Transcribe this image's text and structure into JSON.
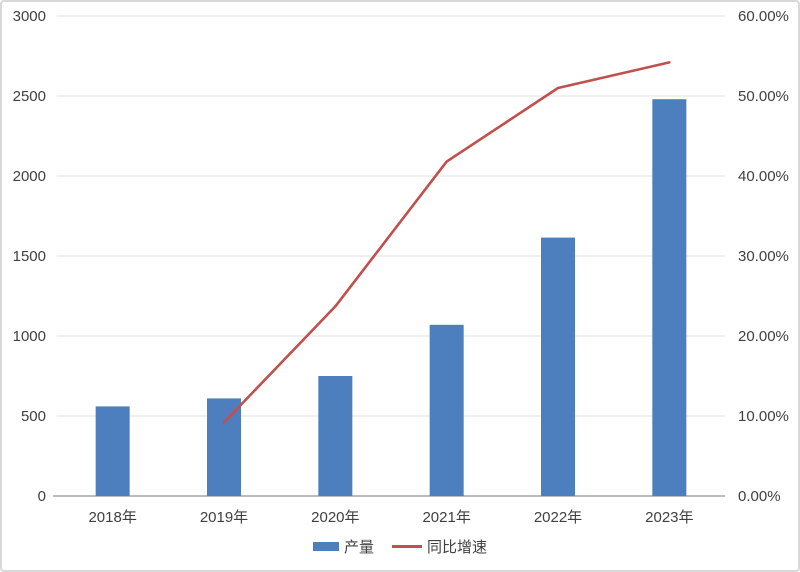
{
  "chart_data": {
    "type": "bar",
    "subtype": "bar-line-combo",
    "title": "",
    "categories": [
      "2018年",
      "2019年",
      "2020年",
      "2021年",
      "2022年",
      "2023年"
    ],
    "series": [
      {
        "name": "产量",
        "render": "bar",
        "axis": "left",
        "color": "#4d7ebd",
        "values": [
          560,
          610,
          750,
          1070,
          1615,
          2480
        ]
      },
      {
        "name": "同比增速",
        "render": "line",
        "axis": "right",
        "color": "#c0504d",
        "values": [
          null,
          9.2,
          23.7,
          41.8,
          51.0,
          54.2
        ]
      }
    ],
    "left_axis": {
      "min": 0,
      "max": 3000,
      "step": 500,
      "tick_labels": [
        "0",
        "500",
        "1000",
        "1500",
        "2000",
        "2500",
        "3000"
      ]
    },
    "right_axis": {
      "min": 0,
      "max": 60,
      "step": 10,
      "tick_labels": [
        "0.00%",
        "10.00%",
        "20.00%",
        "30.00%",
        "40.00%",
        "50.00%",
        "60.00%"
      ]
    },
    "grid": true,
    "legend_position": "bottom",
    "colors": {
      "bar_fill": "#4d7ebd",
      "line_stroke": "#c0504d",
      "gridline": "#e2e2e2",
      "axis_line": "#a6a6a6",
      "tick_text": "#404040"
    }
  },
  "legend": {
    "production_label": "产量",
    "growth_label": "同比增速"
  }
}
